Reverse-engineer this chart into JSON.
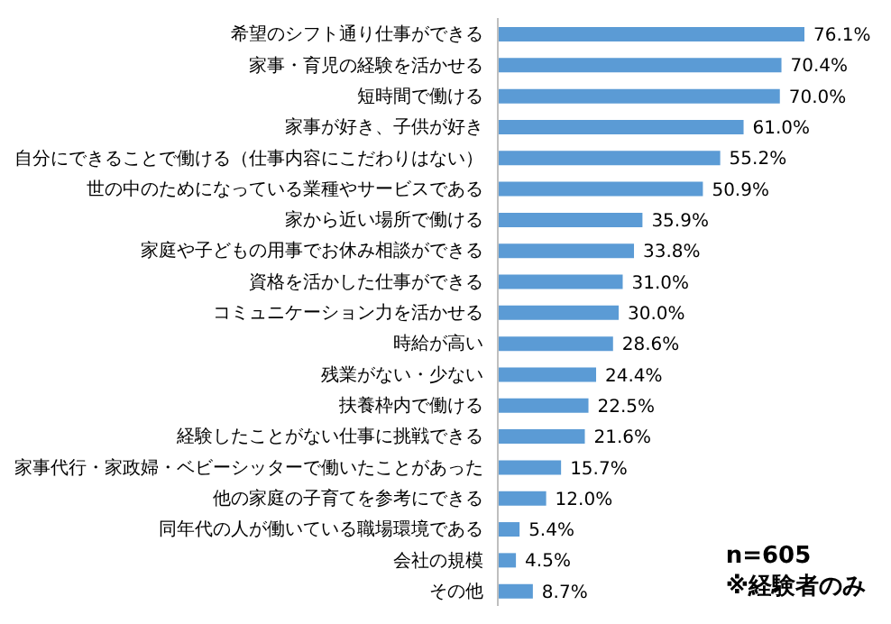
{
  "chart_data": {
    "type": "bar",
    "orientation": "horizontal",
    "categories": [
      "希望のシフト通り仕事ができる",
      "家事・育児の経験を活かせる",
      "短時間で働ける",
      "家事が好き、子供が好き",
      "自分にできることで働ける（仕事内容にこだわりはない）",
      "世の中のためになっている業種やサービスである",
      "家から近い場所で働ける",
      "家庭や子どもの用事でお休み相談ができる",
      "資格を活かした仕事ができる",
      "コミュニケーション力を活かせる",
      "時給が高い",
      "残業がない・少ない",
      "扶養枠内で働ける",
      "経験したことがない仕事に挑戦できる",
      "家事代行・家政婦・ベビーシッターで働いたことがあった",
      "他の家庭の子育てを参考にできる",
      "同年代の人が働いている職場環境である",
      "会社の規模",
      "その他"
    ],
    "values": [
      76.1,
      70.4,
      70.0,
      61.0,
      55.2,
      50.9,
      35.9,
      33.8,
      31.0,
      30.0,
      28.6,
      24.4,
      22.5,
      21.6,
      15.7,
      12.0,
      5.4,
      4.5,
      8.7
    ],
    "value_labels": [
      "76.1%",
      "70.4%",
      "70.0%",
      "61.0%",
      "55.2%",
      "50.9%",
      "35.9%",
      "33.8%",
      "31.0%",
      "30.0%",
      "28.6%",
      "24.4%",
      "22.5%",
      "21.6%",
      "15.7%",
      "12.0%",
      "5.4%",
      "4.5%",
      "8.7%"
    ],
    "color": "#5b9bd5",
    "annotations": [
      "n=605",
      "※経験者のみ"
    ],
    "grid": false,
    "legend": false
  }
}
